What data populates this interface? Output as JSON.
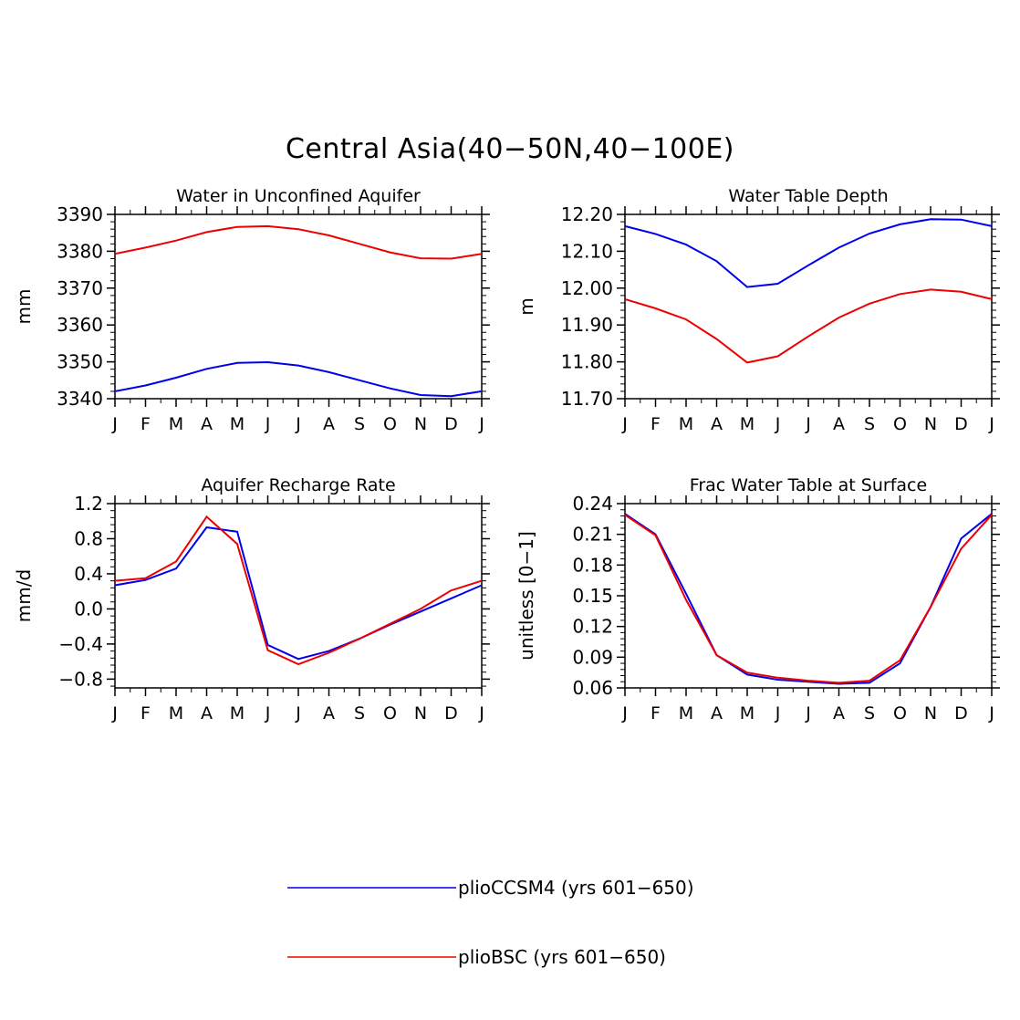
{
  "title": "Central Asia(40−50N,40−100E)",
  "colors": {
    "pliocCSM4": "#0000ee",
    "plioBSC": "#ee0000",
    "axis": "#000000"
  },
  "months": [
    "J",
    "F",
    "M",
    "A",
    "M",
    "J",
    "J",
    "A",
    "S",
    "O",
    "N",
    "D",
    "J"
  ],
  "legend": [
    {
      "label": "plioCCSM4 (yrs 601−650)",
      "color": "#0000ee"
    },
    {
      "label": "plioBSC (yrs 601−650)",
      "color": "#ee0000"
    }
  ],
  "chart_data": [
    {
      "type": "line",
      "title": "Water in Unconfined Aquifer",
      "ylabel": "mm",
      "xlabel": "",
      "ylim": [
        3340,
        3390
      ],
      "yticks": [
        3340,
        3350,
        3360,
        3370,
        3380,
        3390
      ],
      "ytick_labels": [
        "3340",
        "3350",
        "3360",
        "3370",
        "3380",
        "3390"
      ],
      "series": [
        {
          "name": "plioCCSM4 (yrs 601−650)",
          "values": [
            3342.0,
            3343.6,
            3345.7,
            3348.1,
            3349.7,
            3349.9,
            3349.0,
            3347.2,
            3345.0,
            3342.8,
            3341.0,
            3340.7,
            3342.0
          ]
        },
        {
          "name": "plioBSC (yrs 601−650)",
          "values": [
            3379.3,
            3381.0,
            3382.9,
            3385.2,
            3386.6,
            3386.8,
            3386.0,
            3384.3,
            3382.0,
            3379.7,
            3378.1,
            3378.0,
            3379.3
          ]
        }
      ]
    },
    {
      "type": "line",
      "title": "Water Table Depth",
      "ylabel": "m",
      "xlabel": "",
      "ylim": [
        11.7,
        12.2
      ],
      "yticks": [
        11.7,
        11.8,
        11.9,
        12.0,
        12.1,
        12.2
      ],
      "ytick_labels": [
        "11.70",
        "11.80",
        "11.90",
        "12.00",
        "12.10",
        "12.20"
      ],
      "series": [
        {
          "name": "plioCCSM4 (yrs 601−650)",
          "values": [
            12.168,
            12.147,
            12.118,
            12.073,
            12.003,
            12.012,
            12.062,
            12.11,
            12.148,
            12.173,
            12.187,
            12.186,
            12.168
          ]
        },
        {
          "name": "plioBSC (yrs 601−650)",
          "values": [
            11.97,
            11.945,
            11.915,
            11.862,
            11.798,
            11.815,
            11.869,
            11.92,
            11.958,
            11.984,
            11.996,
            11.99,
            11.97
          ]
        }
      ]
    },
    {
      "type": "line",
      "title": "Aquifer Recharge Rate",
      "ylabel": "mm/d",
      "xlabel": "",
      "ylim": [
        -0.9,
        1.2
      ],
      "yticks": [
        -0.8,
        -0.4,
        0.0,
        0.4,
        0.8,
        1.2
      ],
      "ytick_labels": [
        "−0.8",
        "−0.4",
        "0.0",
        "0.4",
        "0.8",
        "1.2"
      ],
      "series": [
        {
          "name": "plioCCSM4 (yrs 601−650)",
          "values": [
            0.27,
            0.33,
            0.46,
            0.93,
            0.88,
            -0.41,
            -0.57,
            -0.48,
            -0.34,
            -0.18,
            -0.03,
            0.12,
            0.27
          ]
        },
        {
          "name": "plioBSC (yrs 601−650)",
          "values": [
            0.32,
            0.35,
            0.54,
            1.05,
            0.74,
            -0.47,
            -0.63,
            -0.5,
            -0.34,
            -0.17,
            0.0,
            0.21,
            0.32
          ]
        }
      ]
    },
    {
      "type": "line",
      "title": "Frac Water Table at Surface",
      "ylabel": "unitless [0−1]",
      "xlabel": "",
      "ylim": [
        0.06,
        0.24
      ],
      "yticks": [
        0.06,
        0.09,
        0.12,
        0.15,
        0.18,
        0.21,
        0.24
      ],
      "ytick_labels": [
        "0.06",
        "0.09",
        "0.12",
        "0.15",
        "0.18",
        "0.21",
        "0.24"
      ],
      "series": [
        {
          "name": "plioCCSM4 (yrs 601−650)",
          "values": [
            0.23,
            0.21,
            0.152,
            0.092,
            0.073,
            0.068,
            0.066,
            0.064,
            0.065,
            0.084,
            0.139,
            0.206,
            0.23
          ]
        },
        {
          "name": "plioBSC (yrs 601−650)",
          "values": [
            0.229,
            0.209,
            0.146,
            0.092,
            0.075,
            0.07,
            0.067,
            0.065,
            0.067,
            0.087,
            0.139,
            0.196,
            0.229
          ]
        }
      ]
    }
  ]
}
